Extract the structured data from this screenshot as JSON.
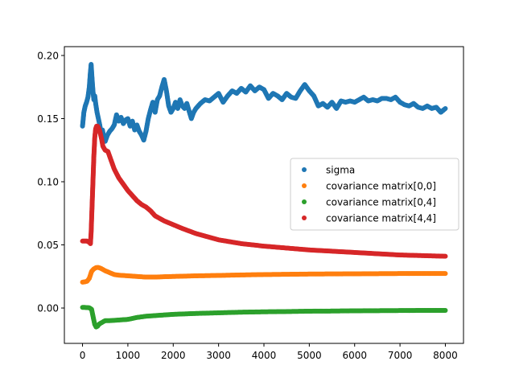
{
  "chart_data": {
    "type": "scatter",
    "title": "",
    "xlabel": "",
    "ylabel": "",
    "xlim": [
      -400,
      8400
    ],
    "ylim": [
      -0.028,
      0.207
    ],
    "x_ticks": [
      0,
      1000,
      2000,
      3000,
      4000,
      5000,
      6000,
      7000,
      8000
    ],
    "y_ticks": [
      0.0,
      0.05,
      0.1,
      0.15,
      0.2
    ],
    "x_tick_labels": [
      "0",
      "1000",
      "2000",
      "3000",
      "4000",
      "5000",
      "6000",
      "7000",
      "8000"
    ],
    "y_tick_labels": [
      "0.00",
      "0.05",
      "0.10",
      "0.15",
      "0.20"
    ],
    "grid": false,
    "legend_position": "center-right",
    "series": [
      {
        "name": "sigma",
        "color": "#1f77b4",
        "points": [
          [
            0,
            0.144
          ],
          [
            30,
            0.155
          ],
          [
            60,
            0.16
          ],
          [
            90,
            0.163
          ],
          [
            120,
            0.167
          ],
          [
            150,
            0.175
          ],
          [
            170,
            0.185
          ],
          [
            190,
            0.193
          ],
          [
            210,
            0.182
          ],
          [
            230,
            0.172
          ],
          [
            250,
            0.165
          ],
          [
            270,
            0.168
          ],
          [
            290,
            0.162
          ],
          [
            320,
            0.155
          ],
          [
            350,
            0.15
          ],
          [
            380,
            0.145
          ],
          [
            410,
            0.138
          ],
          [
            440,
            0.141
          ],
          [
            470,
            0.135
          ],
          [
            500,
            0.132
          ],
          [
            550,
            0.137
          ],
          [
            600,
            0.14
          ],
          [
            650,
            0.142
          ],
          [
            700,
            0.145
          ],
          [
            750,
            0.153
          ],
          [
            800,
            0.148
          ],
          [
            850,
            0.151
          ],
          [
            900,
            0.146
          ],
          [
            950,
            0.149
          ],
          [
            1000,
            0.15
          ],
          [
            1050,
            0.144
          ],
          [
            1100,
            0.148
          ],
          [
            1150,
            0.141
          ],
          [
            1200,
            0.145
          ],
          [
            1250,
            0.14
          ],
          [
            1300,
            0.137
          ],
          [
            1350,
            0.133
          ],
          [
            1400,
            0.14
          ],
          [
            1450,
            0.15
          ],
          [
            1500,
            0.157
          ],
          [
            1550,
            0.163
          ],
          [
            1600,
            0.155
          ],
          [
            1650,
            0.165
          ],
          [
            1700,
            0.168
          ],
          [
            1750,
            0.175
          ],
          [
            1800,
            0.181
          ],
          [
            1850,
            0.172
          ],
          [
            1900,
            0.16
          ],
          [
            1950,
            0.155
          ],
          [
            2000,
            0.158
          ],
          [
            2050,
            0.163
          ],
          [
            2100,
            0.158
          ],
          [
            2150,
            0.165
          ],
          [
            2200,
            0.16
          ],
          [
            2250,
            0.158
          ],
          [
            2300,
            0.162
          ],
          [
            2350,
            0.156
          ],
          [
            2400,
            0.15
          ],
          [
            2450,
            0.155
          ],
          [
            2500,
            0.158
          ],
          [
            2600,
            0.162
          ],
          [
            2700,
            0.165
          ],
          [
            2800,
            0.164
          ],
          [
            2900,
            0.167
          ],
          [
            3000,
            0.17
          ],
          [
            3100,
            0.163
          ],
          [
            3200,
            0.168
          ],
          [
            3300,
            0.172
          ],
          [
            3400,
            0.17
          ],
          [
            3500,
            0.174
          ],
          [
            3600,
            0.171
          ],
          [
            3700,
            0.176
          ],
          [
            3800,
            0.172
          ],
          [
            3900,
            0.175
          ],
          [
            4000,
            0.173
          ],
          [
            4100,
            0.166
          ],
          [
            4200,
            0.17
          ],
          [
            4300,
            0.168
          ],
          [
            4400,
            0.165
          ],
          [
            4500,
            0.17
          ],
          [
            4600,
            0.167
          ],
          [
            4700,
            0.166
          ],
          [
            4800,
            0.172
          ],
          [
            4900,
            0.177
          ],
          [
            5000,
            0.172
          ],
          [
            5100,
            0.168
          ],
          [
            5200,
            0.16
          ],
          [
            5300,
            0.162
          ],
          [
            5400,
            0.159
          ],
          [
            5500,
            0.163
          ],
          [
            5600,
            0.158
          ],
          [
            5700,
            0.164
          ],
          [
            5800,
            0.163
          ],
          [
            5900,
            0.164
          ],
          [
            6000,
            0.163
          ],
          [
            6100,
            0.165
          ],
          [
            6200,
            0.167
          ],
          [
            6300,
            0.164
          ],
          [
            6400,
            0.165
          ],
          [
            6500,
            0.164
          ],
          [
            6600,
            0.166
          ],
          [
            6700,
            0.166
          ],
          [
            6800,
            0.165
          ],
          [
            6900,
            0.167
          ],
          [
            7000,
            0.163
          ],
          [
            7100,
            0.161
          ],
          [
            7200,
            0.16
          ],
          [
            7300,
            0.162
          ],
          [
            7400,
            0.159
          ],
          [
            7500,
            0.158
          ],
          [
            7600,
            0.16
          ],
          [
            7700,
            0.158
          ],
          [
            7800,
            0.159
          ],
          [
            7900,
            0.155
          ],
          [
            8000,
            0.158
          ]
        ]
      },
      {
        "name": "covariance matrix[0,0]",
        "color": "#ff7f0e",
        "points": [
          [
            0,
            0.0205
          ],
          [
            50,
            0.0207
          ],
          [
            100,
            0.0212
          ],
          [
            150,
            0.0235
          ],
          [
            200,
            0.029
          ],
          [
            250,
            0.031
          ],
          [
            300,
            0.032
          ],
          [
            350,
            0.0321
          ],
          [
            400,
            0.0315
          ],
          [
            500,
            0.0295
          ],
          [
            600,
            0.028
          ],
          [
            700,
            0.0265
          ],
          [
            800,
            0.026
          ],
          [
            1000,
            0.0255
          ],
          [
            1200,
            0.025
          ],
          [
            1400,
            0.0245
          ],
          [
            1600,
            0.0245
          ],
          [
            1800,
            0.0248
          ],
          [
            2000,
            0.025
          ],
          [
            2500,
            0.0255
          ],
          [
            3000,
            0.0258
          ],
          [
            3500,
            0.0262
          ],
          [
            4000,
            0.0265
          ],
          [
            4500,
            0.0267
          ],
          [
            5000,
            0.0269
          ],
          [
            5500,
            0.027
          ],
          [
            6000,
            0.0271
          ],
          [
            6500,
            0.0272
          ],
          [
            7000,
            0.0273
          ],
          [
            7500,
            0.0273
          ],
          [
            8000,
            0.0273
          ]
        ]
      },
      {
        "name": "covariance matrix[0,4]",
        "color": "#2ca02c",
        "points": [
          [
            0,
            0.0005
          ],
          [
            50,
            0.0005
          ],
          [
            100,
            0.0003
          ],
          [
            150,
            0.0002
          ],
          [
            200,
            -0.001
          ],
          [
            240,
            -0.008
          ],
          [
            270,
            -0.013
          ],
          [
            300,
            -0.015
          ],
          [
            330,
            -0.0145
          ],
          [
            360,
            -0.013
          ],
          [
            400,
            -0.012
          ],
          [
            450,
            -0.011
          ],
          [
            500,
            -0.01
          ],
          [
            600,
            -0.01
          ],
          [
            800,
            -0.0095
          ],
          [
            1000,
            -0.009
          ],
          [
            1200,
            -0.0075
          ],
          [
            1400,
            -0.0065
          ],
          [
            1600,
            -0.006
          ],
          [
            1800,
            -0.0055
          ],
          [
            2000,
            -0.005
          ],
          [
            2500,
            -0.0043
          ],
          [
            3000,
            -0.0038
          ],
          [
            3500,
            -0.0033
          ],
          [
            4000,
            -0.003
          ],
          [
            4500,
            -0.0028
          ],
          [
            5000,
            -0.0025
          ],
          [
            5500,
            -0.0024
          ],
          [
            6000,
            -0.0022
          ],
          [
            6500,
            -0.0021
          ],
          [
            7000,
            -0.002
          ],
          [
            7500,
            -0.0019
          ],
          [
            8000,
            -0.0019
          ]
        ]
      },
      {
        "name": "covariance matrix[4,4]",
        "color": "#d62728",
        "points": [
          [
            0,
            0.053
          ],
          [
            50,
            0.053
          ],
          [
            100,
            0.053
          ],
          [
            150,
            0.052
          ],
          [
            175,
            0.051
          ],
          [
            190,
            0.06
          ],
          [
            210,
            0.08
          ],
          [
            230,
            0.1
          ],
          [
            250,
            0.12
          ],
          [
            270,
            0.135
          ],
          [
            290,
            0.142
          ],
          [
            310,
            0.144
          ],
          [
            330,
            0.144
          ],
          [
            350,
            0.143
          ],
          [
            380,
            0.14
          ],
          [
            420,
            0.134
          ],
          [
            450,
            0.128
          ],
          [
            500,
            0.125
          ],
          [
            560,
            0.124
          ],
          [
            600,
            0.12
          ],
          [
            700,
            0.11
          ],
          [
            800,
            0.103
          ],
          [
            900,
            0.098
          ],
          [
            1000,
            0.093
          ],
          [
            1100,
            0.089
          ],
          [
            1200,
            0.085
          ],
          [
            1300,
            0.082
          ],
          [
            1400,
            0.08
          ],
          [
            1500,
            0.077
          ],
          [
            1600,
            0.073
          ],
          [
            1800,
            0.069
          ],
          [
            2000,
            0.066
          ],
          [
            2200,
            0.063
          ],
          [
            2500,
            0.059
          ],
          [
            3000,
            0.054
          ],
          [
            3500,
            0.051
          ],
          [
            4000,
            0.049
          ],
          [
            4500,
            0.0475
          ],
          [
            5000,
            0.046
          ],
          [
            5500,
            0.045
          ],
          [
            6000,
            0.044
          ],
          [
            6500,
            0.043
          ],
          [
            7000,
            0.042
          ],
          [
            7500,
            0.0415
          ],
          [
            8000,
            0.041
          ]
        ]
      }
    ]
  }
}
